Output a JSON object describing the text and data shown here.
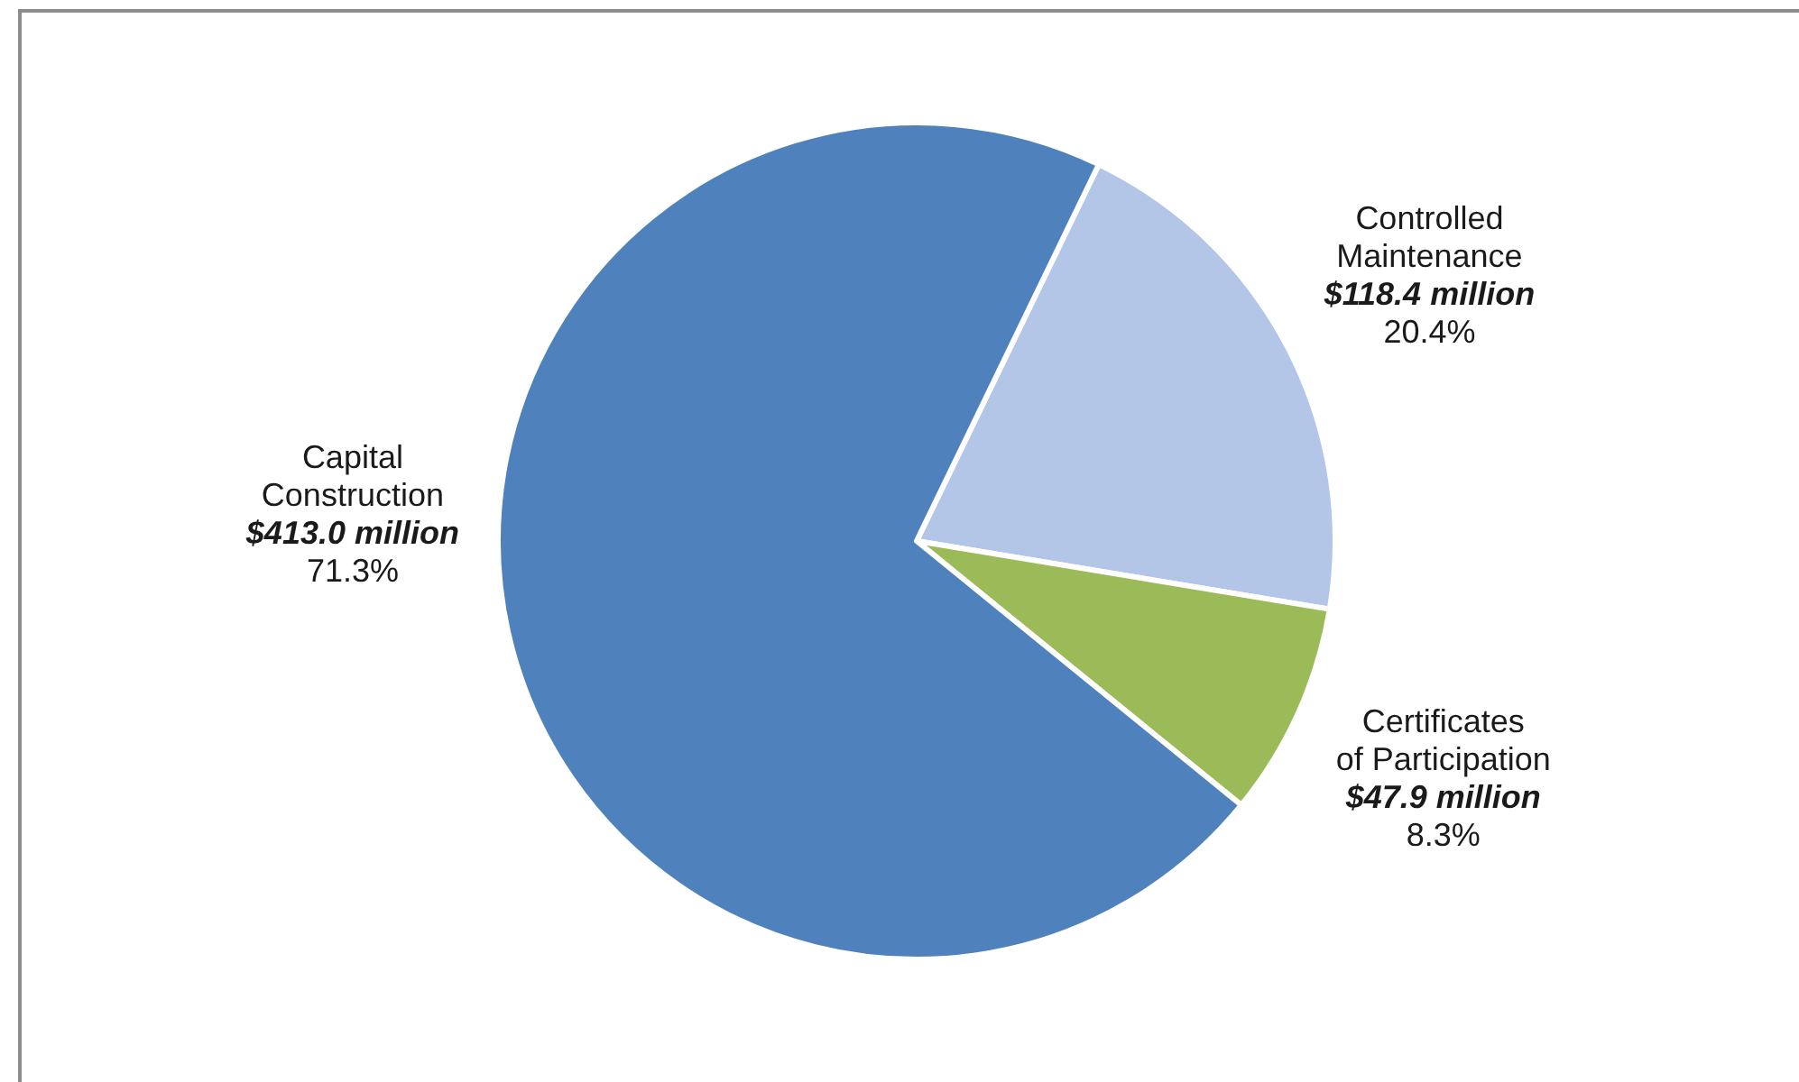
{
  "chart_data": {
    "type": "pie",
    "categories": [
      "Controlled Maintenance",
      "Certificates of Participation",
      "Capital Construction"
    ],
    "values": [
      118.4,
      47.9,
      413.0
    ],
    "colors": [
      "#b3c6e7",
      "#9bbb59",
      "#4f81bd"
    ],
    "value_labels": [
      "$118.4 million",
      "$47.9 million",
      "$413.0 million"
    ],
    "annotations": [
      {
        "text": "20.4%",
        "x": "Controlled Maintenance"
      },
      {
        "text": "8.3%",
        "x": "Certificates of Participation"
      },
      {
        "text": "71.3%",
        "x": "Capital Construction"
      }
    ]
  }
}
